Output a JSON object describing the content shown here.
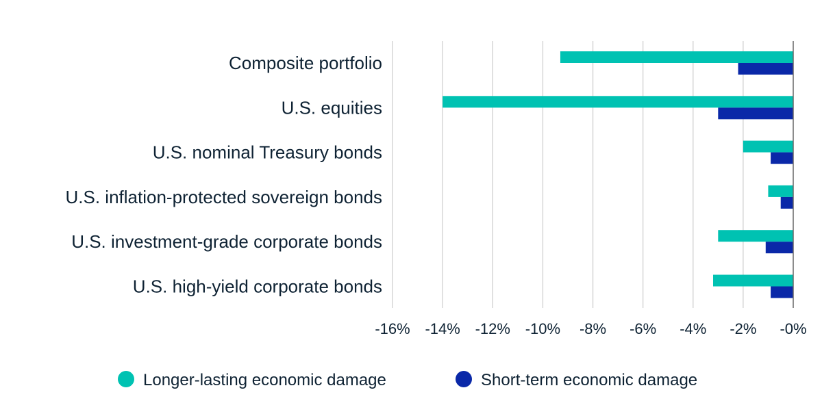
{
  "chart_data": {
    "type": "bar",
    "orientation": "horizontal",
    "categories": [
      "Composite portfolio",
      "U.S. equities",
      "U.S. nominal Treasury bonds",
      "U.S. inflation-protected sovereign bonds",
      "U.S. investment-grade corporate bonds",
      "U.S. high-yield corporate bonds"
    ],
    "series": [
      {
        "name": "Longer-lasting economic damage",
        "color": "#00c2b2",
        "values": [
          -9.3,
          -14.0,
          -2.0,
          -1.0,
          -3.0,
          -3.2
        ]
      },
      {
        "name": "Short-term economic damage",
        "color": "#0a28a8",
        "values": [
          -2.2,
          -3.0,
          -0.9,
          -0.5,
          -1.1,
          -0.9
        ]
      }
    ],
    "xlim": [
      -16,
      0
    ],
    "xticks": [
      -16,
      -14,
      -12,
      -10,
      -8,
      -6,
      -4,
      -2,
      0
    ],
    "xtick_labels": [
      "-16%",
      "-14%",
      "-12%",
      "-10%",
      "-8%",
      "-6%",
      "-4%",
      "-2%",
      "-0%"
    ],
    "grid": "vertical",
    "legend": "bottom",
    "title": "",
    "xlabel": "",
    "ylabel": ""
  }
}
